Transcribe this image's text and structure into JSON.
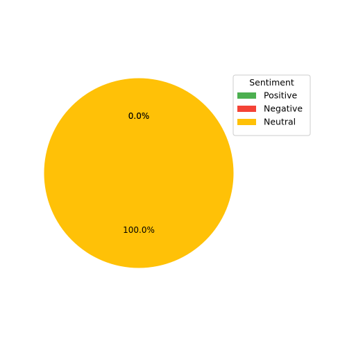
{
  "chart_data": {
    "type": "pie",
    "categories": [
      "Positive",
      "Negative",
      "Neutral"
    ],
    "values": [
      0,
      0,
      100
    ],
    "percent_labels": [
      "0.0%",
      "0.0%",
      "100.0%"
    ],
    "colors": [
      "#4caf50",
      "#f44336",
      "#ffc107"
    ],
    "legend": {
      "title": "Sentiment",
      "placement": "upper-right"
    },
    "start_angle_deg": 90
  }
}
